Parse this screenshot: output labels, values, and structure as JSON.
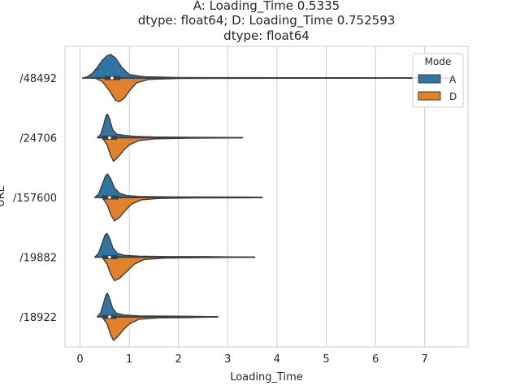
{
  "chart_data": {
    "type": "violin",
    "title_lines": [
      "A: Loading_Time    0.5335",
      "dtype: float64; D: Loading_Time    0.752593",
      "dtype: float64"
    ],
    "xlabel": "Loading_Time",
    "ylabel": "URL",
    "xlim": [
      -0.3,
      7.8
    ],
    "x_ticks": [
      0,
      1,
      2,
      3,
      4,
      5,
      6,
      7
    ],
    "x_tick_labels": [
      "0",
      "1",
      "2",
      "3",
      "4",
      "5",
      "6",
      "7"
    ],
    "categories": [
      "/48492",
      "/24706",
      "/157600",
      "/19882",
      "/18922"
    ],
    "grid": "vertical",
    "split": true,
    "legend": {
      "title": "Mode",
      "placement": "top-right",
      "entries": [
        {
          "label": "A",
          "color": "#3274a1"
        },
        {
          "label": "D",
          "color": "#e1812c"
        }
      ]
    },
    "series": [
      {
        "name": "A",
        "color": "#3274a1",
        "violins": [
          {
            "min": 0.05,
            "max": 7.6,
            "q1": 0.5,
            "median": 0.65,
            "q3": 0.82,
            "density": [
              [
                0.05,
                0.0
              ],
              [
                0.15,
                0.05
              ],
              [
                0.25,
                0.2
              ],
              [
                0.35,
                0.45
              ],
              [
                0.45,
                0.75
              ],
              [
                0.55,
                0.95
              ],
              [
                0.62,
                1.0
              ],
              [
                0.72,
                0.85
              ],
              [
                0.85,
                0.45
              ],
              [
                1.0,
                0.15
              ],
              [
                1.3,
                0.05
              ],
              [
                2.0,
                0.02
              ],
              [
                3.0,
                0.015
              ],
              [
                4.3,
                0.01
              ],
              [
                5.5,
                0.01
              ],
              [
                7.0,
                0.008
              ],
              [
                7.6,
                0.0
              ]
            ]
          },
          {
            "min": 0.35,
            "max": 3.3,
            "q1": 0.45,
            "median": 0.6,
            "q3": 0.75,
            "density": [
              [
                0.35,
                0.0
              ],
              [
                0.42,
                0.15
              ],
              [
                0.48,
                0.55
              ],
              [
                0.53,
                0.95
              ],
              [
                0.56,
                1.0
              ],
              [
                0.6,
                0.8
              ],
              [
                0.66,
                0.35
              ],
              [
                0.75,
                0.15
              ],
              [
                0.9,
                0.1
              ],
              [
                1.1,
                0.06
              ],
              [
                1.5,
                0.03
              ],
              [
                2.2,
                0.02
              ],
              [
                3.0,
                0.01
              ],
              [
                3.3,
                0.0
              ]
            ]
          },
          {
            "min": 0.3,
            "max": 3.7,
            "q1": 0.45,
            "median": 0.6,
            "q3": 0.78,
            "density": [
              [
                0.3,
                0.0
              ],
              [
                0.38,
                0.15
              ],
              [
                0.45,
                0.55
              ],
              [
                0.52,
                0.92
              ],
              [
                0.56,
                1.0
              ],
              [
                0.62,
                0.8
              ],
              [
                0.7,
                0.4
              ],
              [
                0.8,
                0.18
              ],
              [
                0.95,
                0.08
              ],
              [
                1.2,
                0.04
              ],
              [
                1.8,
                0.025
              ],
              [
                2.6,
                0.02
              ],
              [
                3.4,
                0.015
              ],
              [
                3.7,
                0.0
              ]
            ]
          },
          {
            "min": 0.3,
            "max": 3.55,
            "q1": 0.45,
            "median": 0.6,
            "q3": 0.76,
            "density": [
              [
                0.3,
                0.0
              ],
              [
                0.38,
                0.18
              ],
              [
                0.45,
                0.6
              ],
              [
                0.51,
                0.95
              ],
              [
                0.55,
                1.0
              ],
              [
                0.6,
                0.8
              ],
              [
                0.67,
                0.38
              ],
              [
                0.76,
                0.16
              ],
              [
                0.9,
                0.08
              ],
              [
                1.2,
                0.04
              ],
              [
                1.8,
                0.025
              ],
              [
                2.7,
                0.02
              ],
              [
                3.55,
                0.0
              ]
            ]
          },
          {
            "min": 0.35,
            "max": 2.8,
            "q1": 0.45,
            "median": 0.6,
            "q3": 0.74,
            "density": [
              [
                0.35,
                0.0
              ],
              [
                0.42,
                0.18
              ],
              [
                0.48,
                0.6
              ],
              [
                0.53,
                0.95
              ],
              [
                0.56,
                1.0
              ],
              [
                0.6,
                0.78
              ],
              [
                0.66,
                0.38
              ],
              [
                0.74,
                0.16
              ],
              [
                0.9,
                0.08
              ],
              [
                1.2,
                0.04
              ],
              [
                1.8,
                0.03
              ],
              [
                2.4,
                0.02
              ],
              [
                2.8,
                0.0
              ]
            ]
          }
        ]
      },
      {
        "name": "D",
        "color": "#e1812c",
        "violins": [
          {
            "min": 0.3,
            "max": 7.6,
            "q1": 0.5,
            "median": 0.65,
            "q3": 0.82,
            "density": [
              [
                0.3,
                0.0
              ],
              [
                0.45,
                0.15
              ],
              [
                0.6,
                0.55
              ],
              [
                0.72,
                0.95
              ],
              [
                0.8,
                1.0
              ],
              [
                0.9,
                0.85
              ],
              [
                1.0,
                0.55
              ],
              [
                1.15,
                0.2
              ],
              [
                1.4,
                0.06
              ],
              [
                2.0,
                0.02
              ],
              [
                3.0,
                0.015
              ],
              [
                4.3,
                0.01
              ],
              [
                5.5,
                0.01
              ],
              [
                7.0,
                0.008
              ],
              [
                7.6,
                0.0
              ]
            ]
          },
          {
            "min": 0.45,
            "max": 3.3,
            "q1": 0.45,
            "median": 0.6,
            "q3": 0.75,
            "density": [
              [
                0.45,
                0.0
              ],
              [
                0.55,
                0.3
              ],
              [
                0.62,
                0.75
              ],
              [
                0.68,
                1.0
              ],
              [
                0.76,
                0.85
              ],
              [
                0.88,
                0.55
              ],
              [
                1.0,
                0.3
              ],
              [
                1.2,
                0.12
              ],
              [
                1.5,
                0.05
              ],
              [
                2.2,
                0.02
              ],
              [
                3.0,
                0.01
              ],
              [
                3.3,
                0.0
              ]
            ]
          },
          {
            "min": 0.45,
            "max": 3.7,
            "q1": 0.45,
            "median": 0.6,
            "q3": 0.78,
            "density": [
              [
                0.45,
                0.0
              ],
              [
                0.55,
                0.3
              ],
              [
                0.63,
                0.75
              ],
              [
                0.7,
                1.0
              ],
              [
                0.8,
                0.85
              ],
              [
                0.92,
                0.55
              ],
              [
                1.05,
                0.28
              ],
              [
                1.25,
                0.1
              ],
              [
                1.6,
                0.04
              ],
              [
                2.4,
                0.02
              ],
              [
                3.4,
                0.015
              ],
              [
                3.7,
                0.0
              ]
            ]
          },
          {
            "min": 0.45,
            "max": 3.55,
            "q1": 0.45,
            "median": 0.6,
            "q3": 0.76,
            "density": [
              [
                0.45,
                0.0
              ],
              [
                0.55,
                0.3
              ],
              [
                0.63,
                0.75
              ],
              [
                0.7,
                1.0
              ],
              [
                0.8,
                0.9
              ],
              [
                0.95,
                0.6
              ],
              [
                1.1,
                0.3
              ],
              [
                1.3,
                0.1
              ],
              [
                1.7,
                0.04
              ],
              [
                2.6,
                0.02
              ],
              [
                3.55,
                0.0
              ]
            ]
          },
          {
            "min": 0.45,
            "max": 2.8,
            "q1": 0.45,
            "median": 0.6,
            "q3": 0.74,
            "density": [
              [
                0.45,
                0.0
              ],
              [
                0.55,
                0.3
              ],
              [
                0.62,
                0.75
              ],
              [
                0.68,
                1.0
              ],
              [
                0.76,
                0.85
              ],
              [
                0.88,
                0.55
              ],
              [
                1.0,
                0.3
              ],
              [
                1.2,
                0.1
              ],
              [
                1.6,
                0.04
              ],
              [
                2.2,
                0.03
              ],
              [
                2.8,
                0.0
              ]
            ]
          }
        ]
      }
    ]
  }
}
